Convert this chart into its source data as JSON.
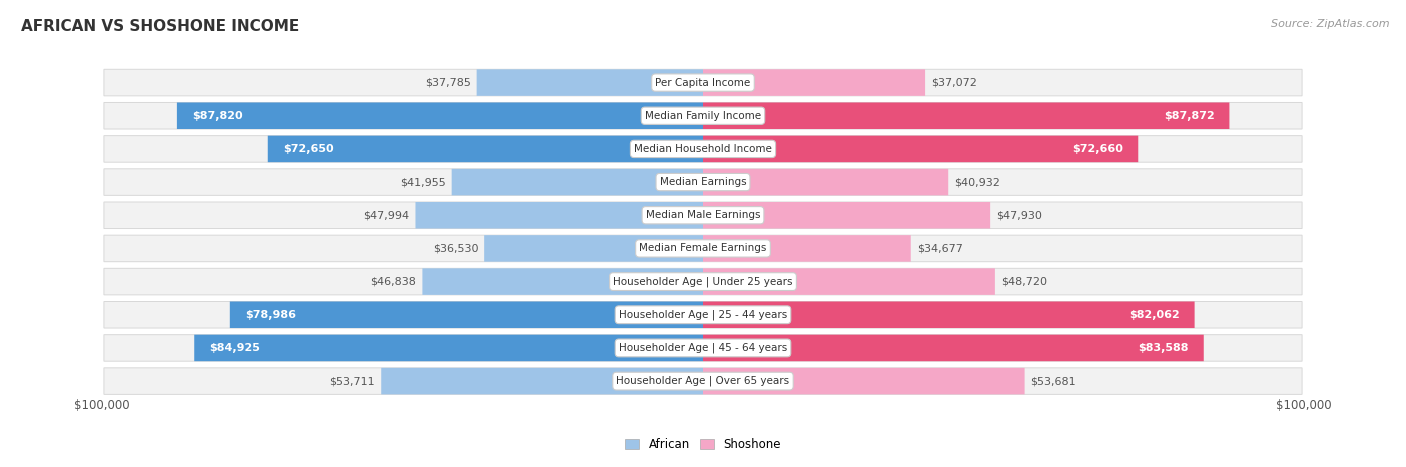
{
  "title": "AFRICAN VS SHOSHONE INCOME",
  "source": "Source: ZipAtlas.com",
  "categories": [
    "Per Capita Income",
    "Median Family Income",
    "Median Household Income",
    "Median Earnings",
    "Median Male Earnings",
    "Median Female Earnings",
    "Householder Age | Under 25 years",
    "Householder Age | 25 - 44 years",
    "Householder Age | 45 - 64 years",
    "Householder Age | Over 65 years"
  ],
  "african_values": [
    37785,
    87820,
    72650,
    41955,
    47994,
    36530,
    46838,
    78986,
    84925,
    53711
  ],
  "shoshone_values": [
    37072,
    87872,
    72660,
    40932,
    47930,
    34677,
    48720,
    82062,
    83588,
    53681
  ],
  "african_labels": [
    "$37,785",
    "$87,820",
    "$72,650",
    "$41,955",
    "$47,994",
    "$36,530",
    "$46,838",
    "$78,986",
    "$84,925",
    "$53,711"
  ],
  "shoshone_labels": [
    "$37,072",
    "$87,872",
    "$72,660",
    "$40,932",
    "$47,930",
    "$34,677",
    "$48,720",
    "$82,062",
    "$83,588",
    "$53,681"
  ],
  "max_value": 100000,
  "african_color_light": "#9ec4e8",
  "african_color_dark": "#4d96d4",
  "shoshone_color_light": "#f5a7c7",
  "shoshone_color_dark": "#e8507a",
  "label_threshold": 65000,
  "background_color": "#ffffff",
  "row_bg_color": "#f2f2f2",
  "row_border_color": "#d8d8d8",
  "title_fontsize": 11,
  "source_fontsize": 8,
  "label_fontsize": 8,
  "category_fontsize": 7.5,
  "axis_label": "$100,000",
  "legend_african": "African",
  "legend_shoshone": "Shoshone"
}
